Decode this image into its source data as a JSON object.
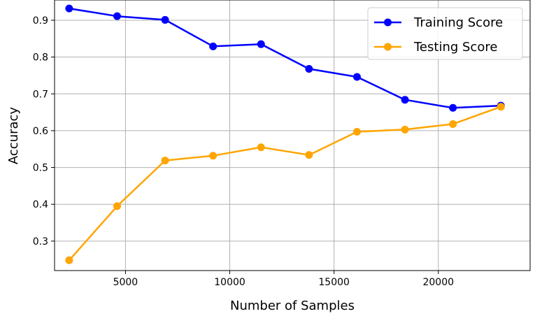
{
  "chart_data": {
    "type": "line",
    "xlabel": "Number of Samples",
    "ylabel": "Accuracy",
    "xlim": [
      1600,
      24400
    ],
    "ylim": [
      0.22,
      0.955
    ],
    "xticks": [
      5000,
      10000,
      15000,
      20000
    ],
    "yticks": [
      0.3,
      0.4,
      0.5,
      0.6,
      0.7,
      0.8,
      0.9
    ],
    "grid": true,
    "legend_position": "top-right",
    "x": [
      2300,
      4600,
      6900,
      9200,
      11500,
      13800,
      16100,
      18400,
      20700,
      23000
    ],
    "series": [
      {
        "name": "Training Score",
        "color": "#0000ff",
        "marker": "circle",
        "values": [
          0.932,
          0.911,
          0.901,
          0.829,
          0.835,
          0.768,
          0.746,
          0.684,
          0.662,
          0.668
        ]
      },
      {
        "name": "Testing Score",
        "color": "#ffa500",
        "marker": "circle",
        "values": [
          0.248,
          0.395,
          0.519,
          0.532,
          0.555,
          0.534,
          0.597,
          0.603,
          0.618,
          0.665
        ]
      }
    ]
  }
}
